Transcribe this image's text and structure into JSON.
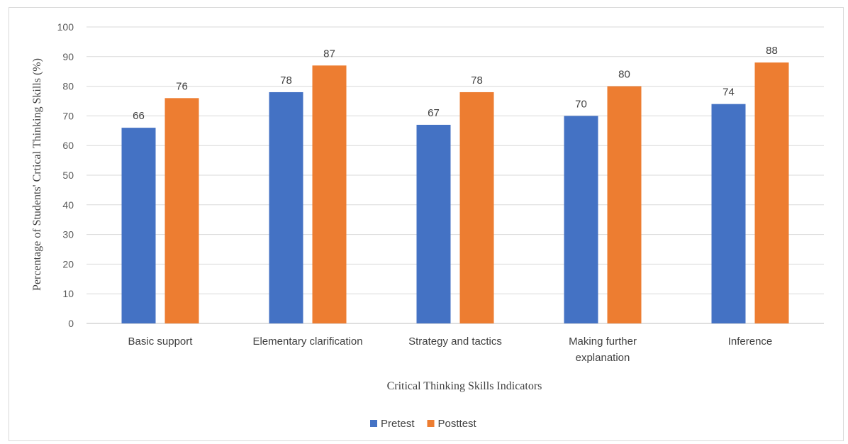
{
  "chart_data": {
    "type": "bar",
    "title": "",
    "xlabel": "Critical Thinking Skills Indicators",
    "ylabel": "Percentage of Students' Crtical Thinking Skills  (%)",
    "categories": [
      [
        "Basic support"
      ],
      [
        "Elementary clarification"
      ],
      [
        "Strategy and tactics"
      ],
      [
        "Making further",
        "explanation"
      ],
      [
        "Inference"
      ]
    ],
    "series": [
      {
        "name": "Pretest",
        "values": [
          66,
          78,
          67,
          70,
          74
        ],
        "color": "#4472c4"
      },
      {
        "name": "Posttest",
        "values": [
          76,
          87,
          78,
          80,
          88
        ],
        "color": "#ed7d31"
      }
    ],
    "ylim": [
      0,
      100
    ],
    "yticks": [
      0,
      10,
      20,
      30,
      40,
      50,
      60,
      70,
      80,
      90,
      100
    ],
    "grid": true,
    "legend_position": "bottom"
  }
}
